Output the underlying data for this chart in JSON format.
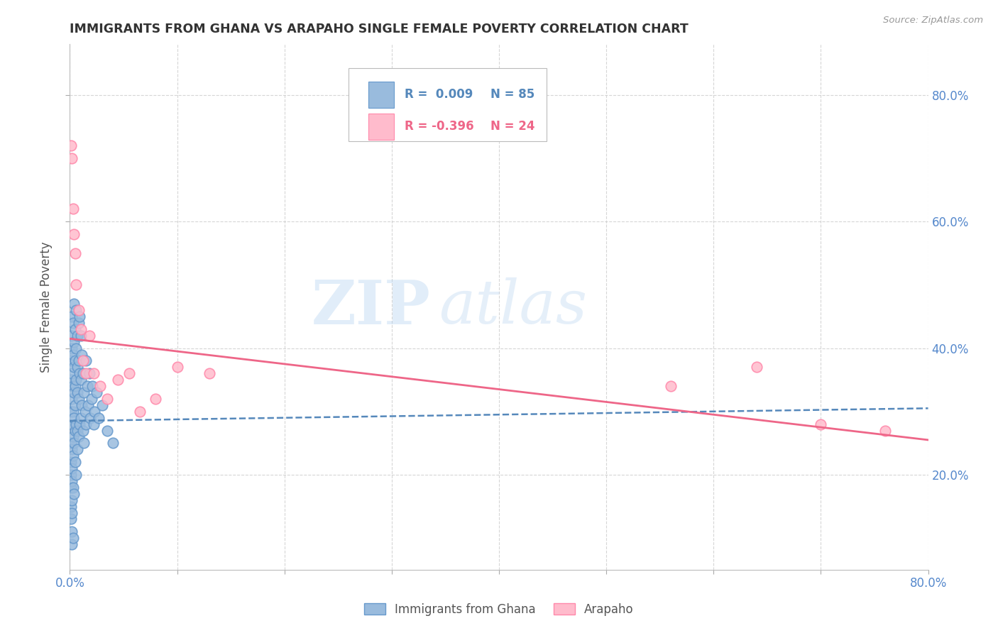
{
  "title": "IMMIGRANTS FROM GHANA VS ARAPAHO SINGLE FEMALE POVERTY CORRELATION CHART",
  "source": "Source: ZipAtlas.com",
  "ylabel": "Single Female Poverty",
  "x_min": 0.0,
  "x_max": 0.8,
  "y_min": 0.05,
  "y_max": 0.88,
  "ytick_positions": [
    0.2,
    0.4,
    0.6,
    0.8
  ],
  "ytick_labels": [
    "20.0%",
    "40.0%",
    "60.0%",
    "80.0%"
  ],
  "xtick_positions": [
    0.0,
    0.1,
    0.2,
    0.3,
    0.4,
    0.5,
    0.6,
    0.7,
    0.8
  ],
  "xtick_labels_show": [
    "0.0%",
    "",
    "",
    "",
    "",
    "",
    "",
    "",
    "80.0%"
  ],
  "blue_color": "#99BBDD",
  "blue_edge_color": "#6699CC",
  "pink_color": "#FFBBCC",
  "pink_edge_color": "#FF88AA",
  "trendline_blue_color": "#5588BB",
  "trendline_pink_color": "#EE6688",
  "legend_R_blue": "R =  0.009",
  "legend_N_blue": "N = 85",
  "legend_R_pink": "R = -0.396",
  "legend_N_pink": "N = 24",
  "legend_label_blue": "Immigrants from Ghana",
  "legend_label_pink": "Arapaho",
  "background_color": "#FFFFFF",
  "grid_color": "#CCCCCC",
  "title_color": "#333333",
  "axis_label_color": "#555555",
  "tick_label_color": "#5588CC",
  "blue_scatter_x": [
    0.001,
    0.001,
    0.001,
    0.001,
    0.001,
    0.001,
    0.001,
    0.001,
    0.001,
    0.001,
    0.002,
    0.002,
    0.002,
    0.002,
    0.002,
    0.002,
    0.002,
    0.002,
    0.002,
    0.002,
    0.002,
    0.002,
    0.003,
    0.003,
    0.003,
    0.003,
    0.003,
    0.003,
    0.003,
    0.003,
    0.004,
    0.004,
    0.004,
    0.004,
    0.004,
    0.004,
    0.004,
    0.005,
    0.005,
    0.005,
    0.005,
    0.005,
    0.005,
    0.006,
    0.006,
    0.006,
    0.006,
    0.006,
    0.007,
    0.007,
    0.007,
    0.007,
    0.007,
    0.008,
    0.008,
    0.008,
    0.008,
    0.009,
    0.009,
    0.009,
    0.01,
    0.01,
    0.01,
    0.011,
    0.011,
    0.012,
    0.012,
    0.013,
    0.013,
    0.014,
    0.015,
    0.015,
    0.016,
    0.017,
    0.018,
    0.019,
    0.02,
    0.021,
    0.022,
    0.023,
    0.025,
    0.027,
    0.03,
    0.035,
    0.04
  ],
  "blue_scatter_y": [
    0.42,
    0.38,
    0.35,
    0.3,
    0.25,
    0.22,
    0.2,
    0.18,
    0.15,
    0.13,
    0.45,
    0.4,
    0.36,
    0.32,
    0.28,
    0.24,
    0.21,
    0.19,
    0.16,
    0.14,
    0.11,
    0.09,
    0.44,
    0.39,
    0.34,
    0.3,
    0.26,
    0.23,
    0.18,
    0.1,
    0.47,
    0.41,
    0.37,
    0.33,
    0.29,
    0.25,
    0.17,
    0.43,
    0.38,
    0.34,
    0.31,
    0.27,
    0.22,
    0.46,
    0.4,
    0.35,
    0.28,
    0.2,
    0.42,
    0.37,
    0.33,
    0.27,
    0.24,
    0.44,
    0.38,
    0.32,
    0.26,
    0.45,
    0.36,
    0.28,
    0.42,
    0.35,
    0.29,
    0.39,
    0.31,
    0.36,
    0.27,
    0.33,
    0.25,
    0.3,
    0.38,
    0.28,
    0.34,
    0.31,
    0.36,
    0.29,
    0.32,
    0.34,
    0.28,
    0.3,
    0.33,
    0.29,
    0.31,
    0.27,
    0.25
  ],
  "pink_scatter_x": [
    0.001,
    0.002,
    0.003,
    0.004,
    0.005,
    0.006,
    0.008,
    0.01,
    0.012,
    0.015,
    0.018,
    0.022,
    0.028,
    0.035,
    0.045,
    0.055,
    0.065,
    0.08,
    0.1,
    0.13,
    0.56,
    0.64,
    0.7,
    0.76
  ],
  "pink_scatter_y": [
    0.72,
    0.7,
    0.62,
    0.58,
    0.55,
    0.5,
    0.46,
    0.43,
    0.38,
    0.36,
    0.42,
    0.36,
    0.34,
    0.32,
    0.35,
    0.36,
    0.3,
    0.32,
    0.37,
    0.36,
    0.34,
    0.37,
    0.28,
    0.27
  ],
  "blue_trend_x0": 0.0,
  "blue_trend_x1": 0.8,
  "blue_trend_y0": 0.285,
  "blue_trend_y1": 0.305,
  "pink_trend_x0": 0.0,
  "pink_trend_x1": 0.8,
  "pink_trend_y0": 0.415,
  "pink_trend_y1": 0.255
}
